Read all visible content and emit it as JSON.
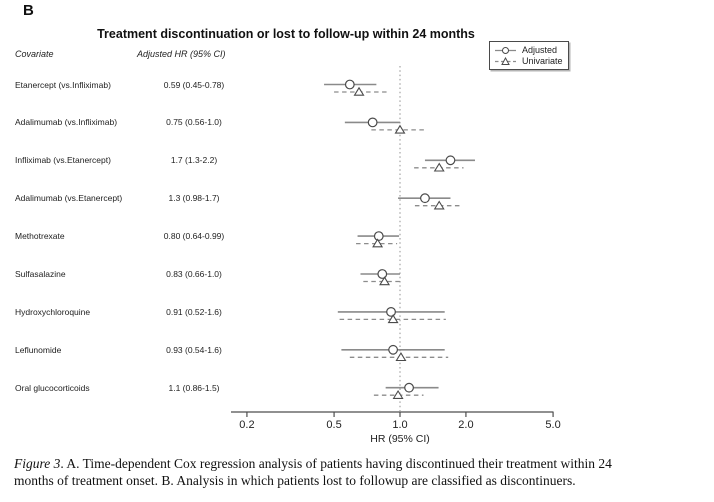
{
  "panel_label": "B",
  "title": "Treatment discontinuation or lost to follow-up within 24 months",
  "column_headers": {
    "covariate": "Covariate",
    "hr": "Adjusted HR (95% CI)"
  },
  "legend": {
    "adjusted": "Adjusted",
    "univariate": "Univariate"
  },
  "axis": {
    "label": "HR (95% CI)",
    "scale": "log",
    "tick_labels": [
      "0.2",
      "0.5",
      "1.0",
      "2.0",
      "5.0"
    ],
    "tick_values": [
      0.2,
      0.5,
      1.0,
      2.0,
      5.0
    ],
    "reference_line": 1.0
  },
  "caption": {
    "figure_label": "Figure 3",
    "line1": ". A. Time-dependent Cox regression analysis of patients having discontinued their treatment within 24",
    "line2": "months of treatment onset. B. Analysis in which patients lost to followup are classified as discontinuers."
  },
  "colors": {
    "ci_solid": "#8a8a8a",
    "ci_dashed": "#8c8c8c",
    "marker_stroke": "#4a4a4a",
    "marker_fill": "#ffffff",
    "axis": "#4d4d4d",
    "reference": "#9a9a9a",
    "text": "#222222"
  },
  "chart_data": {
    "type": "forest",
    "title": "Treatment discontinuation or lost to follow-up within 24 months",
    "xlabel": "HR (95% CI)",
    "x_scale": "log",
    "x_ticks": [
      0.2,
      0.5,
      1.0,
      2.0,
      5.0
    ],
    "xlim": [
      0.2,
      5.0
    ],
    "reference_line": 1.0,
    "legend_position": "top-right",
    "series": [
      "Adjusted",
      "Univariate"
    ],
    "rows": [
      {
        "covariate": "Etanercept (vs.Infliximab)",
        "hr_text": "0.59 (0.45-0.78)",
        "adjusted": {
          "est": 0.59,
          "lo": 0.45,
          "hi": 0.78
        },
        "univariate": {
          "est": 0.65,
          "lo": 0.5,
          "hi": 0.89
        }
      },
      {
        "covariate": "Adalimumab (vs.Infliximab)",
        "hr_text": "0.75 (0.56-1.0)",
        "adjusted": {
          "est": 0.75,
          "lo": 0.56,
          "hi": 1.0
        },
        "univariate": {
          "est": 1.0,
          "lo": 0.74,
          "hi": 1.33
        }
      },
      {
        "covariate": "Infliximab (vs.Etanercept)",
        "hr_text": "1.7 (1.3-2.2)",
        "adjusted": {
          "est": 1.7,
          "lo": 1.3,
          "hi": 2.2
        },
        "univariate": {
          "est": 1.51,
          "lo": 1.16,
          "hi": 1.95
        }
      },
      {
        "covariate": "Adalimumab (vs.Etanercept)",
        "hr_text": "1.3 (0.98-1.7)",
        "adjusted": {
          "est": 1.3,
          "lo": 0.98,
          "hi": 1.7
        },
        "univariate": {
          "est": 1.51,
          "lo": 1.17,
          "hi": 1.92
        }
      },
      {
        "covariate": "Methotrexate",
        "hr_text": "0.80 (0.64-0.99)",
        "adjusted": {
          "est": 0.8,
          "lo": 0.64,
          "hi": 0.99
        },
        "univariate": {
          "est": 0.79,
          "lo": 0.63,
          "hi": 0.97
        }
      },
      {
        "covariate": "Sulfasalazine",
        "hr_text": "0.83 (0.66-1.0)",
        "adjusted": {
          "est": 0.83,
          "lo": 0.66,
          "hi": 1.0
        },
        "univariate": {
          "est": 0.85,
          "lo": 0.68,
          "hi": 1.02
        }
      },
      {
        "covariate": "Hydroxychloroquine",
        "hr_text": "0.91 (0.52-1.6)",
        "adjusted": {
          "est": 0.91,
          "lo": 0.52,
          "hi": 1.6
        },
        "univariate": {
          "est": 0.93,
          "lo": 0.53,
          "hi": 1.62
        }
      },
      {
        "covariate": "Leflunomide",
        "hr_text": "0.93 (0.54-1.6)",
        "adjusted": {
          "est": 0.93,
          "lo": 0.54,
          "hi": 1.6
        },
        "univariate": {
          "est": 1.01,
          "lo": 0.59,
          "hi": 1.66
        }
      },
      {
        "covariate": "Oral glucocorticoids",
        "hr_text": "1.1 (0.86-1.5)",
        "adjusted": {
          "est": 1.1,
          "lo": 0.86,
          "hi": 1.5
        },
        "univariate": {
          "est": 0.98,
          "lo": 0.76,
          "hi": 1.28
        }
      }
    ]
  }
}
